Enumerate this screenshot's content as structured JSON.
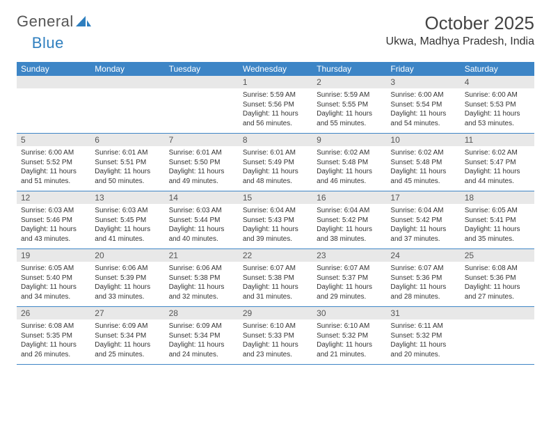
{
  "brand": {
    "part1": "General",
    "part2": "Blue"
  },
  "header": {
    "title": "October 2025",
    "subtitle": "Ukwa, Madhya Pradesh, India"
  },
  "style": {
    "header_bg": "#3d85c6",
    "header_fg": "#ffffff",
    "daynum_bg": "#e8e8e8",
    "border_color": "#3d85c6",
    "page_bg": "#ffffff",
    "body_fontsize": 10,
    "title_fontsize": 26,
    "subtitle_fontsize": 16
  },
  "columns": [
    "Sunday",
    "Monday",
    "Tuesday",
    "Wednesday",
    "Thursday",
    "Friday",
    "Saturday"
  ],
  "weeks": [
    [
      {
        "n": "",
        "lines": []
      },
      {
        "n": "",
        "lines": []
      },
      {
        "n": "",
        "lines": []
      },
      {
        "n": "1",
        "lines": [
          "Sunrise: 5:59 AM",
          "Sunset: 5:56 PM",
          "Daylight: 11 hours and 56 minutes."
        ]
      },
      {
        "n": "2",
        "lines": [
          "Sunrise: 5:59 AM",
          "Sunset: 5:55 PM",
          "Daylight: 11 hours and 55 minutes."
        ]
      },
      {
        "n": "3",
        "lines": [
          "Sunrise: 6:00 AM",
          "Sunset: 5:54 PM",
          "Daylight: 11 hours and 54 minutes."
        ]
      },
      {
        "n": "4",
        "lines": [
          "Sunrise: 6:00 AM",
          "Sunset: 5:53 PM",
          "Daylight: 11 hours and 53 minutes."
        ]
      }
    ],
    [
      {
        "n": "5",
        "lines": [
          "Sunrise: 6:00 AM",
          "Sunset: 5:52 PM",
          "Daylight: 11 hours and 51 minutes."
        ]
      },
      {
        "n": "6",
        "lines": [
          "Sunrise: 6:01 AM",
          "Sunset: 5:51 PM",
          "Daylight: 11 hours and 50 minutes."
        ]
      },
      {
        "n": "7",
        "lines": [
          "Sunrise: 6:01 AM",
          "Sunset: 5:50 PM",
          "Daylight: 11 hours and 49 minutes."
        ]
      },
      {
        "n": "8",
        "lines": [
          "Sunrise: 6:01 AM",
          "Sunset: 5:49 PM",
          "Daylight: 11 hours and 48 minutes."
        ]
      },
      {
        "n": "9",
        "lines": [
          "Sunrise: 6:02 AM",
          "Sunset: 5:48 PM",
          "Daylight: 11 hours and 46 minutes."
        ]
      },
      {
        "n": "10",
        "lines": [
          "Sunrise: 6:02 AM",
          "Sunset: 5:48 PM",
          "Daylight: 11 hours and 45 minutes."
        ]
      },
      {
        "n": "11",
        "lines": [
          "Sunrise: 6:02 AM",
          "Sunset: 5:47 PM",
          "Daylight: 11 hours and 44 minutes."
        ]
      }
    ],
    [
      {
        "n": "12",
        "lines": [
          "Sunrise: 6:03 AM",
          "Sunset: 5:46 PM",
          "Daylight: 11 hours and 43 minutes."
        ]
      },
      {
        "n": "13",
        "lines": [
          "Sunrise: 6:03 AM",
          "Sunset: 5:45 PM",
          "Daylight: 11 hours and 41 minutes."
        ]
      },
      {
        "n": "14",
        "lines": [
          "Sunrise: 6:03 AM",
          "Sunset: 5:44 PM",
          "Daylight: 11 hours and 40 minutes."
        ]
      },
      {
        "n": "15",
        "lines": [
          "Sunrise: 6:04 AM",
          "Sunset: 5:43 PM",
          "Daylight: 11 hours and 39 minutes."
        ]
      },
      {
        "n": "16",
        "lines": [
          "Sunrise: 6:04 AM",
          "Sunset: 5:42 PM",
          "Daylight: 11 hours and 38 minutes."
        ]
      },
      {
        "n": "17",
        "lines": [
          "Sunrise: 6:04 AM",
          "Sunset: 5:42 PM",
          "Daylight: 11 hours and 37 minutes."
        ]
      },
      {
        "n": "18",
        "lines": [
          "Sunrise: 6:05 AM",
          "Sunset: 5:41 PM",
          "Daylight: 11 hours and 35 minutes."
        ]
      }
    ],
    [
      {
        "n": "19",
        "lines": [
          "Sunrise: 6:05 AM",
          "Sunset: 5:40 PM",
          "Daylight: 11 hours and 34 minutes."
        ]
      },
      {
        "n": "20",
        "lines": [
          "Sunrise: 6:06 AM",
          "Sunset: 5:39 PM",
          "Daylight: 11 hours and 33 minutes."
        ]
      },
      {
        "n": "21",
        "lines": [
          "Sunrise: 6:06 AM",
          "Sunset: 5:38 PM",
          "Daylight: 11 hours and 32 minutes."
        ]
      },
      {
        "n": "22",
        "lines": [
          "Sunrise: 6:07 AM",
          "Sunset: 5:38 PM",
          "Daylight: 11 hours and 31 minutes."
        ]
      },
      {
        "n": "23",
        "lines": [
          "Sunrise: 6:07 AM",
          "Sunset: 5:37 PM",
          "Daylight: 11 hours and 29 minutes."
        ]
      },
      {
        "n": "24",
        "lines": [
          "Sunrise: 6:07 AM",
          "Sunset: 5:36 PM",
          "Daylight: 11 hours and 28 minutes."
        ]
      },
      {
        "n": "25",
        "lines": [
          "Sunrise: 6:08 AM",
          "Sunset: 5:36 PM",
          "Daylight: 11 hours and 27 minutes."
        ]
      }
    ],
    [
      {
        "n": "26",
        "lines": [
          "Sunrise: 6:08 AM",
          "Sunset: 5:35 PM",
          "Daylight: 11 hours and 26 minutes."
        ]
      },
      {
        "n": "27",
        "lines": [
          "Sunrise: 6:09 AM",
          "Sunset: 5:34 PM",
          "Daylight: 11 hours and 25 minutes."
        ]
      },
      {
        "n": "28",
        "lines": [
          "Sunrise: 6:09 AM",
          "Sunset: 5:34 PM",
          "Daylight: 11 hours and 24 minutes."
        ]
      },
      {
        "n": "29",
        "lines": [
          "Sunrise: 6:10 AM",
          "Sunset: 5:33 PM",
          "Daylight: 11 hours and 23 minutes."
        ]
      },
      {
        "n": "30",
        "lines": [
          "Sunrise: 6:10 AM",
          "Sunset: 5:32 PM",
          "Daylight: 11 hours and 21 minutes."
        ]
      },
      {
        "n": "31",
        "lines": [
          "Sunrise: 6:11 AM",
          "Sunset: 5:32 PM",
          "Daylight: 11 hours and 20 minutes."
        ]
      },
      {
        "n": "",
        "lines": []
      }
    ]
  ]
}
